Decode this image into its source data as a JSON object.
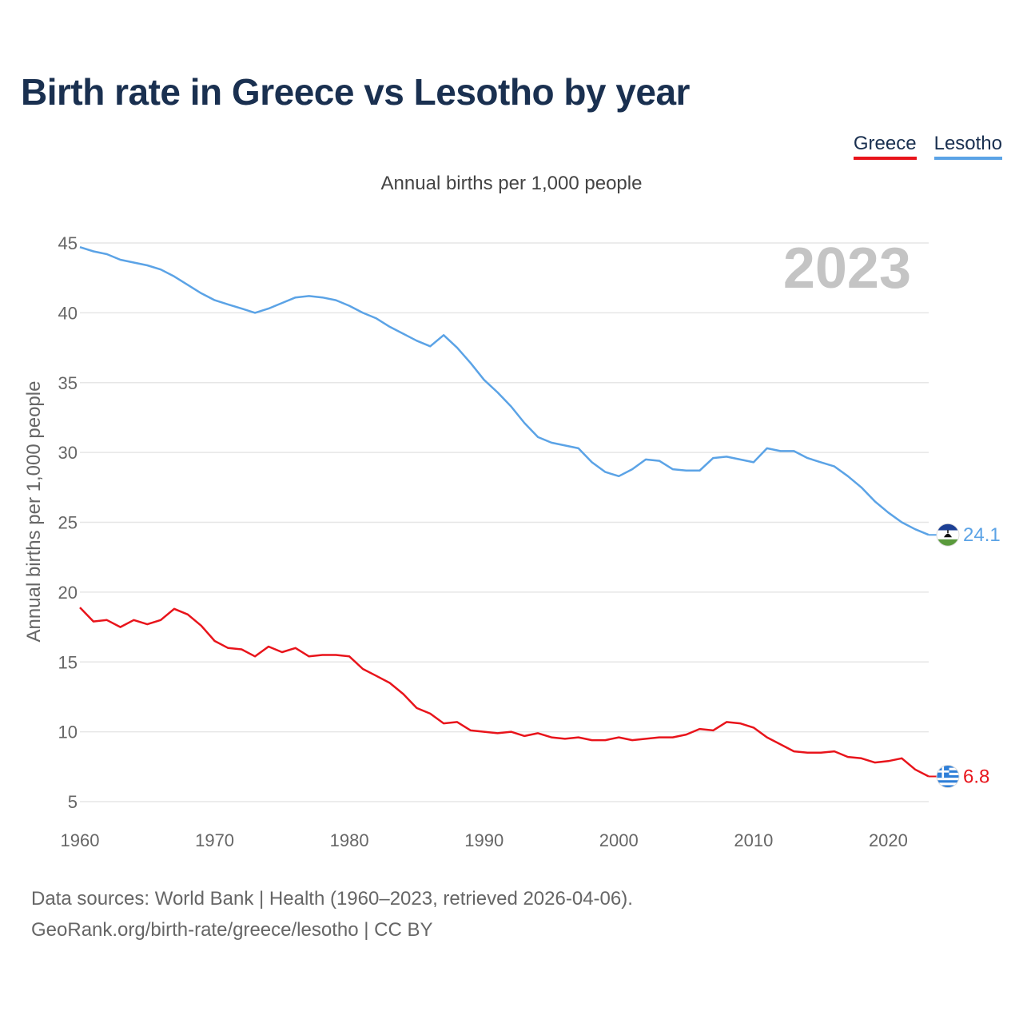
{
  "header": {
    "title": "Birth rate in Greece vs Lesotho by year",
    "subtitle": "Annual births per 1,000 people"
  },
  "legend": [
    {
      "label": "Greece",
      "color": "#e8141b"
    },
    {
      "label": "Lesotho",
      "color": "#5ba3e6"
    }
  ],
  "footer": {
    "line1": "Data sources: World Bank | Health (1960–2023, retrieved 2026-04-06).",
    "line2": "GeoRank.org/birth-rate/greece/lesotho | CC BY"
  },
  "chart_data": {
    "type": "line",
    "title": "Birth rate in Greece vs Lesotho by year",
    "subtitle": "Annual births per 1,000 people",
    "ylabel": "Annual births per 1,000 people",
    "xlabel": "",
    "year_label": "2023",
    "xlim": [
      1960,
      2023
    ],
    "ylim": [
      5,
      45
    ],
    "xticks": [
      1960,
      1970,
      1980,
      1990,
      2000,
      2010,
      2020
    ],
    "yticks": [
      5,
      10,
      15,
      20,
      25,
      30,
      35,
      40,
      45
    ],
    "grid": true,
    "legend_position": "top-right",
    "x": [
      1960,
      1961,
      1962,
      1963,
      1964,
      1965,
      1966,
      1967,
      1968,
      1969,
      1970,
      1971,
      1972,
      1973,
      1974,
      1975,
      1976,
      1977,
      1978,
      1979,
      1980,
      1981,
      1982,
      1983,
      1984,
      1985,
      1986,
      1987,
      1988,
      1989,
      1990,
      1991,
      1992,
      1993,
      1994,
      1995,
      1996,
      1997,
      1998,
      1999,
      2000,
      2001,
      2002,
      2003,
      2004,
      2005,
      2006,
      2007,
      2008,
      2009,
      2010,
      2011,
      2012,
      2013,
      2014,
      2015,
      2016,
      2017,
      2018,
      2019,
      2020,
      2021,
      2022,
      2023
    ],
    "series": [
      {
        "name": "Greece",
        "color": "#e8141b",
        "end_label": "6.8",
        "values": [
          18.9,
          17.9,
          18.0,
          17.5,
          18.0,
          17.7,
          18.0,
          18.8,
          18.4,
          17.6,
          16.5,
          16.0,
          15.9,
          15.4,
          16.1,
          15.7,
          16.0,
          15.4,
          15.5,
          15.5,
          15.4,
          14.5,
          14.0,
          13.5,
          12.7,
          11.7,
          11.3,
          10.6,
          10.7,
          10.1,
          10.0,
          9.9,
          10.0,
          9.7,
          9.9,
          9.6,
          9.5,
          9.6,
          9.4,
          9.4,
          9.6,
          9.4,
          9.5,
          9.6,
          9.6,
          9.8,
          10.2,
          10.1,
          10.7,
          10.6,
          10.3,
          9.6,
          9.1,
          8.6,
          8.5,
          8.5,
          8.6,
          8.2,
          8.1,
          7.8,
          7.9,
          8.1,
          7.3,
          6.8
        ]
      },
      {
        "name": "Lesotho",
        "color": "#5ba3e6",
        "end_label": "24.1",
        "values": [
          44.7,
          44.4,
          44.2,
          43.8,
          43.6,
          43.4,
          43.1,
          42.6,
          42.0,
          41.4,
          40.9,
          40.6,
          40.3,
          40.0,
          40.3,
          40.7,
          41.1,
          41.2,
          41.1,
          40.9,
          40.5,
          40.0,
          39.6,
          39.0,
          38.5,
          38.0,
          37.6,
          38.4,
          37.5,
          36.4,
          35.2,
          34.3,
          33.3,
          32.1,
          31.1,
          30.7,
          30.5,
          30.3,
          29.3,
          28.6,
          28.3,
          28.8,
          29.5,
          29.4,
          28.8,
          28.7,
          28.7,
          29.6,
          29.7,
          29.5,
          29.3,
          30.3,
          30.1,
          30.1,
          29.6,
          29.3,
          29.0,
          28.3,
          27.5,
          26.5,
          25.7,
          25.0,
          24.5,
          24.1
        ]
      }
    ]
  }
}
